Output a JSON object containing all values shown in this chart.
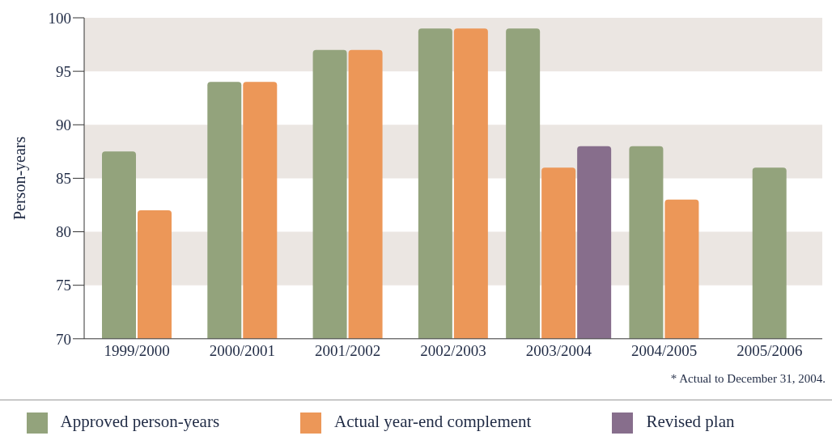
{
  "chart_data": {
    "type": "bar",
    "ylabel": "Person-years",
    "categories": [
      "1999/2000",
      "2000/2001",
      "2001/2002",
      "2002/2003",
      "2003/2004",
      "2004/2005",
      "2005/2006"
    ],
    "series": [
      {
        "name": "Approved person-years",
        "color": "#93a37c",
        "values": [
          87.5,
          94,
          97,
          99,
          99,
          88,
          86
        ]
      },
      {
        "name": "Actual year-end complement",
        "color": "#ec9758",
        "values": [
          82,
          94,
          97,
          99,
          86,
          83,
          null
        ]
      },
      {
        "name": "Revised plan",
        "color": "#876e8c",
        "values": [
          null,
          null,
          null,
          null,
          88,
          null,
          null
        ]
      }
    ],
    "ylim": [
      70,
      100
    ],
    "yticks": [
      70,
      75,
      80,
      85,
      90,
      95,
      100
    ],
    "grid": false,
    "bands": [
      {
        "axis": "y",
        "from": 75,
        "to": 80,
        "color": "#ebe6e2"
      },
      {
        "axis": "y",
        "from": 85,
        "to": 90,
        "color": "#ebe6e2"
      },
      {
        "axis": "y",
        "from": 95,
        "to": 100,
        "color": "#ebe6e2"
      }
    ],
    "legend": "bottom",
    "annotations": [
      "* Actual to December 31, 2004."
    ]
  }
}
